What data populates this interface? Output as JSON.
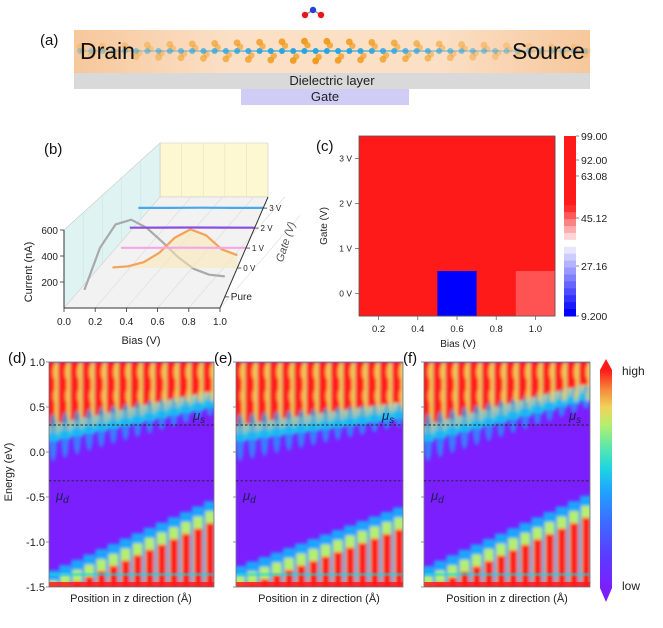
{
  "panel_a": {
    "label": "(a)",
    "drain_label": "Drain",
    "source_label": "Source",
    "dielectric_label": "Dielectric layer",
    "gate_label": "Gate",
    "colors": {
      "electrode": "#f7c9a1",
      "dielectric": "#d8d8d8",
      "gate": "#cfcdf5",
      "atom_s": "#f09a1a",
      "atom_m": "#2aa5e0",
      "molecule_o": "#e3171c",
      "molecule_n": "#2a3fd6"
    }
  },
  "chart_data": [
    {
      "id": "b",
      "panel_label": "(b)",
      "type": "line",
      "title": "",
      "xlabel": "Bias (V)",
      "ylabel": "Current (nA)",
      "zlabel": "Gate (V)",
      "x_ticks": [
        "0.0",
        "0.2",
        "0.4",
        "0.6",
        "0.8",
        "1.0"
      ],
      "y_ticks": [
        "200",
        "400",
        "600"
      ],
      "z_ticks": [
        "Pure",
        "0 V",
        "1 V",
        "2 V",
        "3 V"
      ],
      "xlim": [
        0,
        1.0
      ],
      "ylim": [
        0,
        700
      ],
      "series": [
        {
          "name": "Pure",
          "color": "#a9a9a9",
          "x": [
            0.1,
            0.2,
            0.3,
            0.4,
            0.5,
            0.6,
            0.7,
            0.8,
            0.9,
            1.0
          ],
          "y": [
            60,
            420,
            620,
            660,
            590,
            470,
            340,
            240,
            190,
            175
          ]
        },
        {
          "name": "0 V",
          "color": "#f4a15a",
          "x": [
            0.2,
            0.3,
            0.4,
            0.5,
            0.6,
            0.7,
            0.8,
            0.9,
            1.0
          ],
          "y": [
            5,
            15,
            50,
            130,
            260,
            330,
            280,
            160,
            110
          ]
        },
        {
          "name": "1 V",
          "color": "#f2a6e8",
          "x": [
            0.2,
            0.4,
            0.6,
            0.8,
            1.0
          ],
          "y": [
            2,
            2,
            3,
            2,
            2
          ]
        },
        {
          "name": "2 V",
          "color": "#8a4fe0",
          "x": [
            0.2,
            0.4,
            0.6,
            0.8,
            1.0
          ],
          "y": [
            3,
            4,
            5,
            4,
            3
          ]
        },
        {
          "name": "3 V",
          "color": "#4aa8e8",
          "x": [
            0.2,
            0.4,
            0.6,
            0.8,
            1.0
          ],
          "y": [
            2,
            2,
            3,
            2,
            2
          ]
        }
      ]
    },
    {
      "id": "c",
      "panel_label": "(c)",
      "type": "heatmap",
      "title": "",
      "xlabel": "Bias (V)",
      "ylabel": "Gate (V)",
      "x_ticks": [
        "0.2",
        "0.4",
        "0.6",
        "0.8",
        "1.0"
      ],
      "y_ticks": [
        "3 V",
        "2 V",
        "1 V",
        "0 V"
      ],
      "rows": [
        "3 V",
        "2 V",
        "1 V",
        "0 V"
      ],
      "cols": [
        "0.2",
        "0.4",
        "0.6",
        "0.8",
        "1.0"
      ],
      "values": [
        [
          99.0,
          99.0,
          99.0,
          85.0,
          95.0
        ],
        [
          99.0,
          99.0,
          95.0,
          85.0,
          99.0
        ],
        [
          95.0,
          95.0,
          95.0,
          95.0,
          95.0
        ],
        [
          97.0,
          75.0,
          9.2,
          80.0,
          60.0
        ]
      ],
      "colorbar": {
        "min": 9.2,
        "max": 99.0,
        "tick_labels": [
          "99.00",
          "92.00",
          "63.08",
          "45.12",
          "27.16",
          "9.200"
        ],
        "tick_values": [
          99.0,
          92.0,
          63.08,
          45.12,
          27.16,
          9.2
        ],
        "low_color": "#0000ff",
        "mid_color": "#ffffff",
        "high_color": "#ff1a1a"
      }
    },
    {
      "id": "d",
      "panel_label": "(d)",
      "type": "heatmap",
      "xlabel": "Position in z direction (Å)",
      "ylabel": "Energy (eV)",
      "y_ticks": [
        "1.0",
        "0.5",
        "0.0",
        "-0.5",
        "-1.0",
        "-1.5"
      ],
      "ylim": [
        -1.5,
        1.0
      ],
      "mu_s": {
        "label": "μs",
        "energy": 0.3
      },
      "mu_d": {
        "label": "μd",
        "energy": -0.32
      },
      "cb_edge_left": 0.25,
      "cb_edge_right": 0.62,
      "vb_edge_left": -1.45,
      "vb_edge_right": -0.68
    },
    {
      "id": "e",
      "panel_label": "(e)",
      "type": "heatmap",
      "xlabel": "Position in z direction (Å)",
      "ylabel": "",
      "ylim": [
        -1.5,
        1.0
      ],
      "mu_s": {
        "label": "μs",
        "energy": 0.3
      },
      "mu_d": {
        "label": "μd",
        "energy": -0.32
      },
      "cb_edge_left": 0.25,
      "cb_edge_right": 0.5,
      "vb_edge_left": -1.4,
      "vb_edge_right": -0.75
    },
    {
      "id": "f",
      "panel_label": "(f)",
      "type": "heatmap",
      "xlabel": "Position in z direction (Å)",
      "ylabel": "",
      "ylim": [
        -1.5,
        1.0
      ],
      "mu_s": {
        "label": "μs",
        "energy": 0.3
      },
      "mu_d": {
        "label": "μd",
        "energy": -0.32
      },
      "cb_edge_left": 0.25,
      "cb_edge_right": 0.7,
      "vb_edge_left": -1.4,
      "vb_edge_right": -0.62
    }
  ],
  "colorbar_def": {
    "high_label": "high",
    "low_label": "low",
    "colors": [
      "#7b1fff",
      "#5a3cff",
      "#3d6bff",
      "#1fa5ff",
      "#1fd6e0",
      "#5ee8a8",
      "#b6ef6e",
      "#f1d25a",
      "#f58a3a",
      "#ff1a1a"
    ]
  }
}
